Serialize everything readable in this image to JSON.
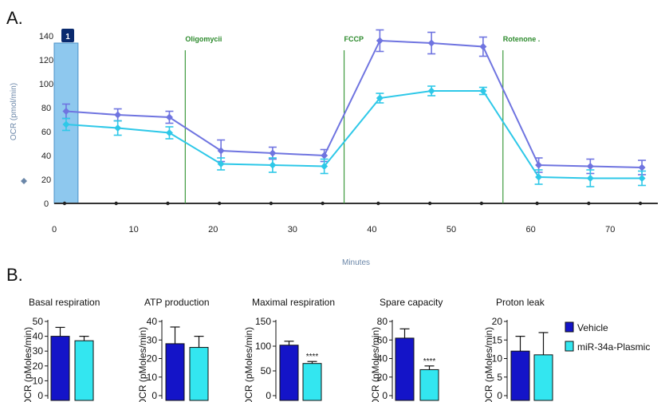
{
  "panel_a_label": "A.",
  "panel_b_label": "B.",
  "chart_data": [
    {
      "type": "line",
      "ylabel": "OCR (pmol/min)",
      "xlabel": "Minutes",
      "xlim": [
        0,
        76
      ],
      "ylim": [
        0,
        140
      ],
      "xticks": [
        0,
        10,
        20,
        30,
        40,
        50,
        60,
        70
      ],
      "yticks": [
        0,
        20,
        40,
        60,
        80,
        100,
        120,
        140
      ],
      "grid": false,
      "series": [
        {
          "color": "#6f74e0",
          "x": [
            1.5,
            8,
            14.5,
            21,
            27.5,
            34,
            41,
            47.5,
            54,
            61,
            67.5,
            74
          ],
          "y": [
            77,
            74,
            72,
            44,
            42,
            40,
            136,
            134,
            131,
            32,
            31,
            30
          ],
          "err": [
            6,
            5,
            5,
            9,
            5,
            5,
            9,
            9,
            8,
            6,
            6,
            6
          ]
        },
        {
          "color": "#2ec8e8",
          "x": [
            1.5,
            8,
            14.5,
            21,
            27.5,
            34,
            41,
            47.5,
            54,
            61,
            67.5,
            74
          ],
          "y": [
            66,
            63,
            59,
            33,
            32,
            31,
            88,
            94,
            94,
            22,
            21,
            21
          ],
          "err": [
            5,
            6,
            5,
            5,
            6,
            6,
            4,
            4,
            3,
            6,
            7,
            6
          ]
        }
      ],
      "injections": [
        {
          "x": 16.5,
          "label": "Oligomycii"
        },
        {
          "x": 36.5,
          "label": "FCCP"
        },
        {
          "x": 56.5,
          "label": "Rotenone ."
        }
      ],
      "measurement_window": {
        "x_start": 0,
        "x_end": 3,
        "label": "1",
        "color": "#8ec8ee"
      }
    },
    {
      "type": "bar",
      "title": "Basal respiration",
      "ylabel": "OCR (pMoles/min)",
      "categories": [
        "Vehicle",
        "miR-34a-Plasmic"
      ],
      "values": [
        40,
        37
      ],
      "errors": [
        6,
        3
      ],
      "ylim": [
        0,
        50
      ],
      "yticks": [
        0,
        10,
        20,
        30,
        40,
        50
      ],
      "significance": ""
    },
    {
      "type": "bar",
      "title": "ATP production",
      "ylabel": "OCR (pMoles/min)",
      "categories": [
        "Vehicle",
        "miR-34a-Plasmic"
      ],
      "values": [
        28,
        26
      ],
      "errors": [
        9,
        6
      ],
      "ylim": [
        0,
        40
      ],
      "yticks": [
        0,
        10,
        20,
        30,
        40
      ],
      "significance": ""
    },
    {
      "type": "bar",
      "title": "Maximal respiration",
      "ylabel": "OCR (pMoles/min)",
      "categories": [
        "Vehicle",
        "miR-34a-Plasmic"
      ],
      "values": [
        102,
        65
      ],
      "errors": [
        8,
        4
      ],
      "ylim": [
        0,
        150
      ],
      "yticks": [
        0,
        50,
        100,
        150
      ],
      "significance": "****"
    },
    {
      "type": "bar",
      "title": "Spare capacity",
      "ylabel": "OCR (pMoles/min)",
      "categories": [
        "Vehicle",
        "miR-34a-Plasmic"
      ],
      "values": [
        62,
        28
      ],
      "errors": [
        10,
        4
      ],
      "ylim": [
        0,
        80
      ],
      "yticks": [
        0,
        20,
        40,
        60,
        80
      ],
      "significance": "****"
    },
    {
      "type": "bar",
      "title": "Proton leak",
      "ylabel": "OCR (pMoles/min)",
      "categories": [
        "Vehicle",
        "miR-34a-Plasmic"
      ],
      "values": [
        12,
        11
      ],
      "errors": [
        4,
        6
      ],
      "ylim": [
        0,
        20
      ],
      "yticks": [
        0,
        5,
        10,
        15,
        20
      ],
      "significance": ""
    }
  ],
  "legend": {
    "position": "right",
    "items": [
      {
        "label": "Vehicle",
        "color": "#1414c8"
      },
      {
        "label": "miR-34a-Plasmic",
        "color": "#33e6f0"
      }
    ]
  }
}
